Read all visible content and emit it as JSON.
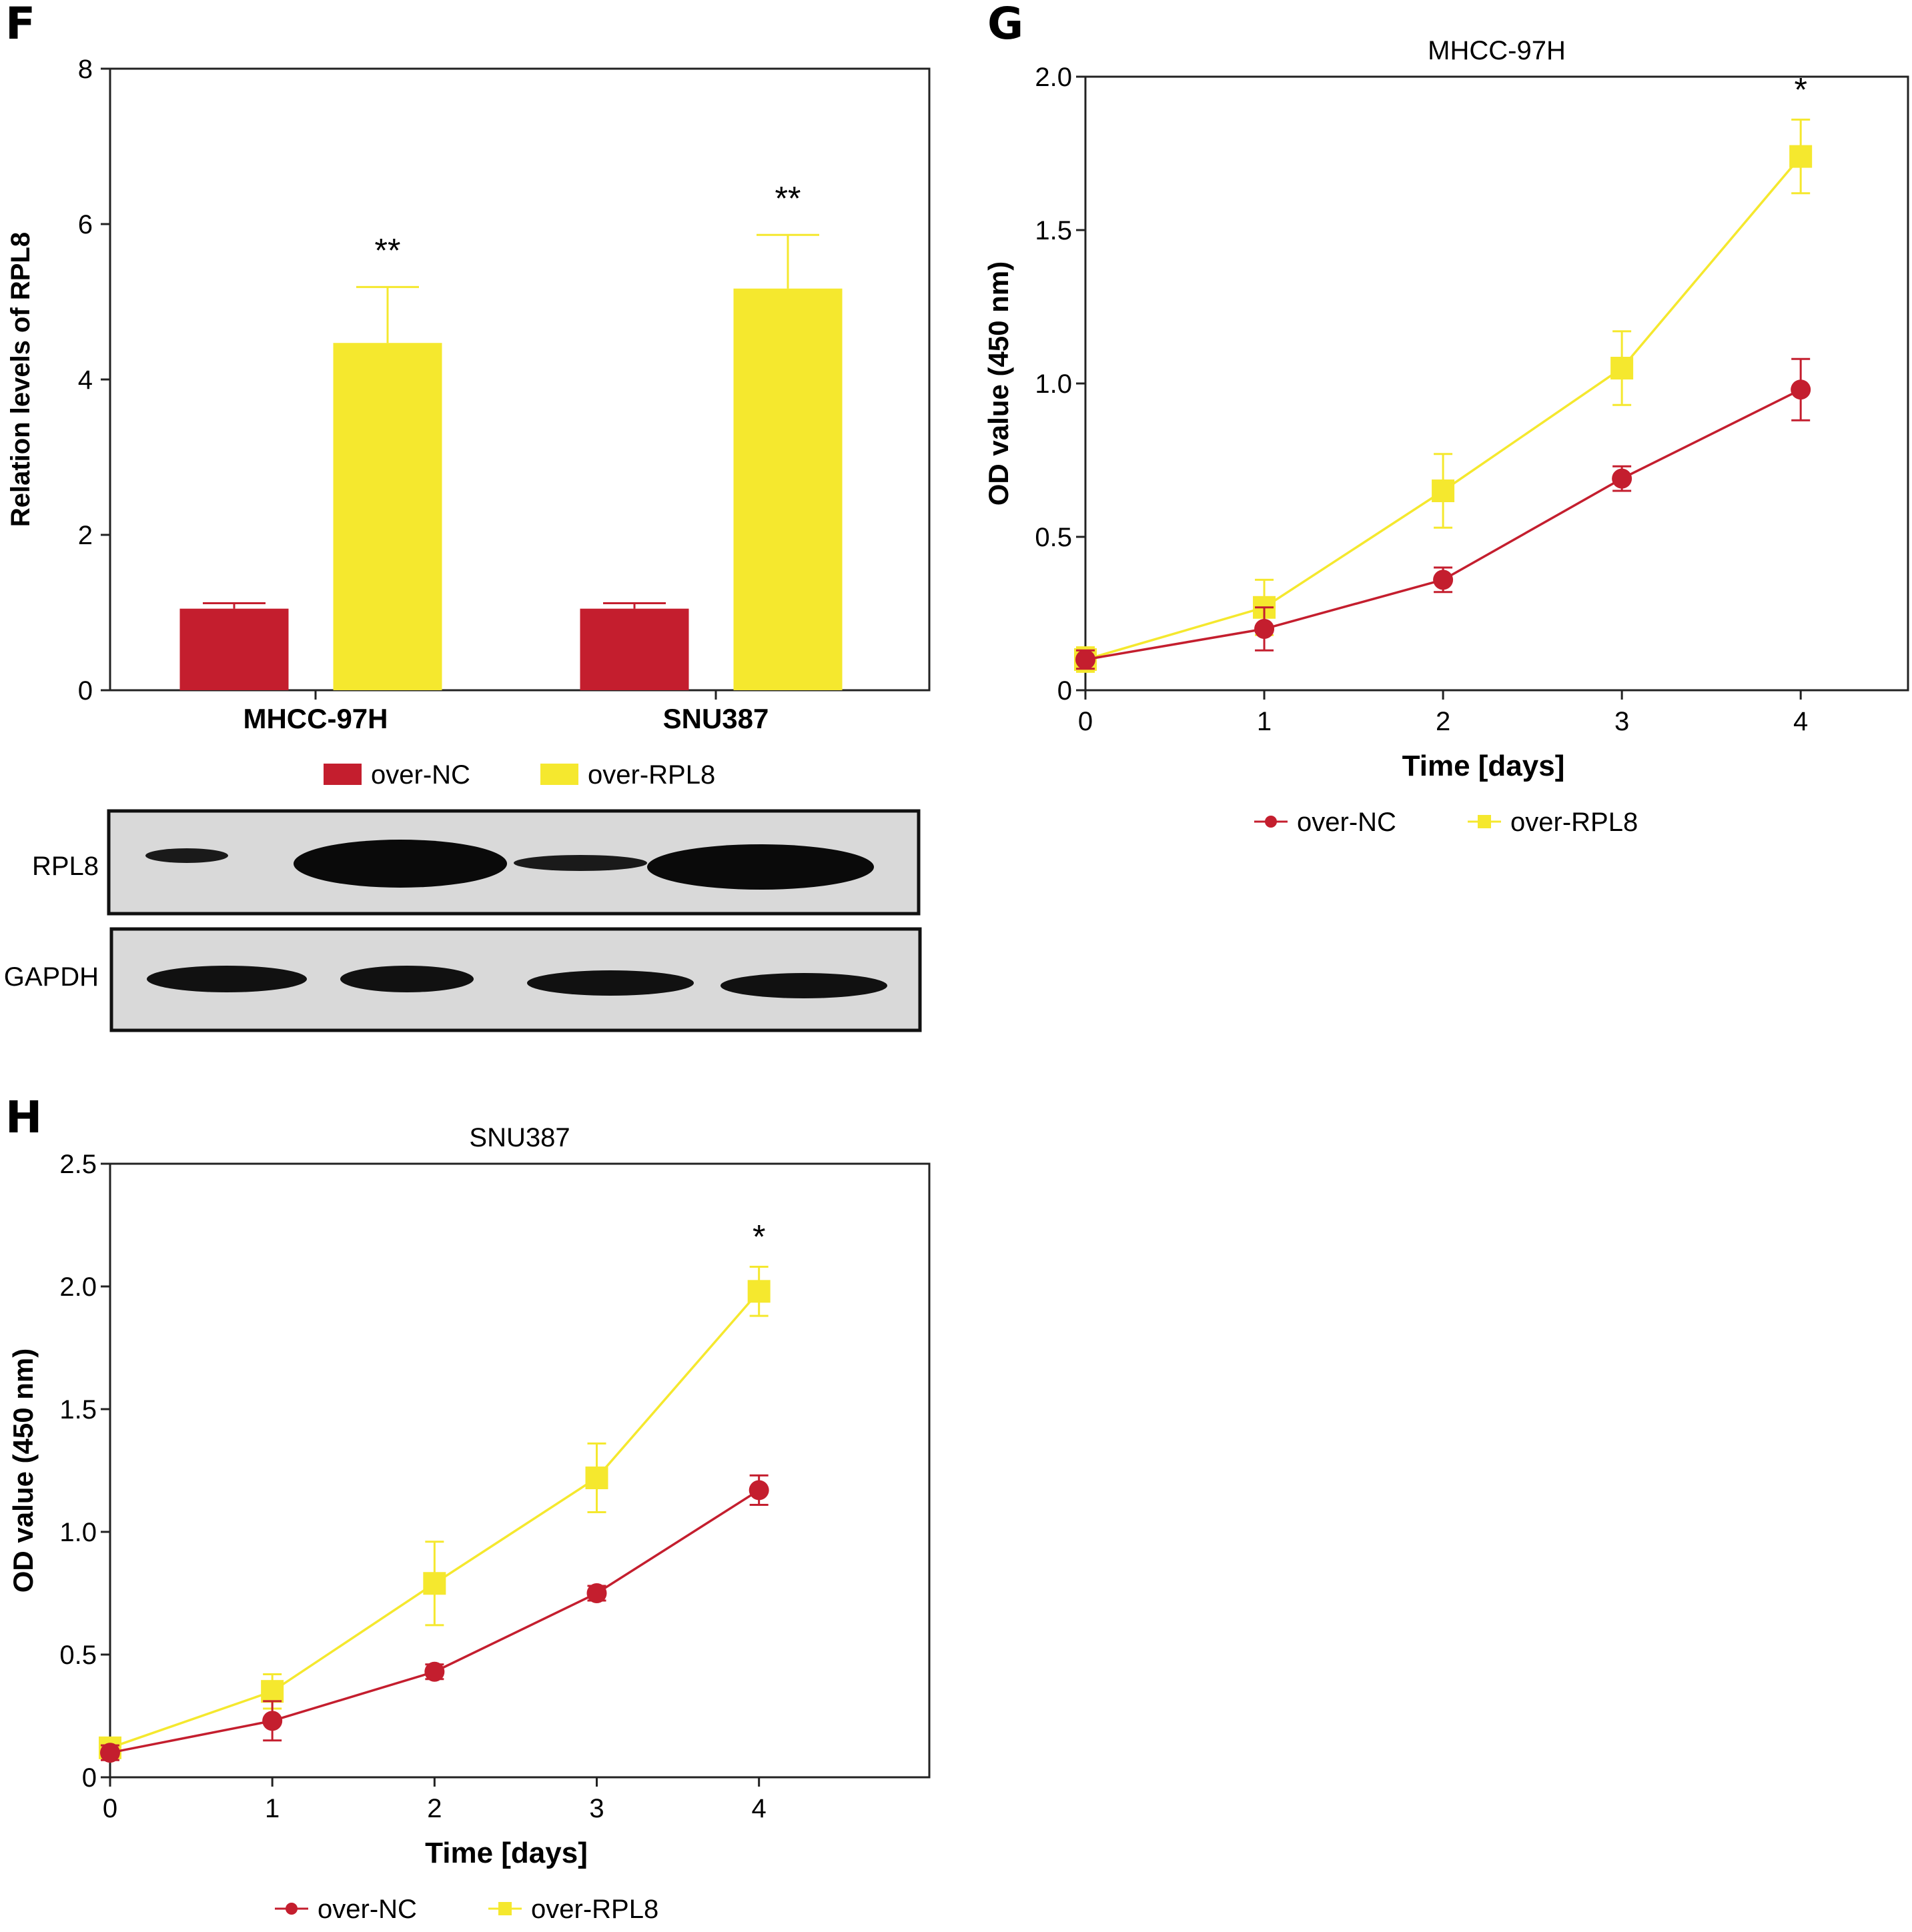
{
  "colors": {
    "red": "#c41e2e",
    "yellow": "#f5e82e",
    "axis": "#222222"
  },
  "legend": {
    "series_nc": "over-NC",
    "series_rpl8": "over-RPL8"
  },
  "panelF": {
    "letter": "F",
    "blot_labels": [
      "RPL8",
      "GAPDH"
    ],
    "chart_data": {
      "type": "bar",
      "title": "",
      "xlabel": "",
      "ylabel": "Relation levels of RPL8",
      "categories": [
        "MHCC-97H",
        "SNU387"
      ],
      "ylim": [
        0,
        8
      ],
      "yticks": [
        0,
        2,
        4,
        6,
        8
      ],
      "series": [
        {
          "name": "over-NC",
          "values": [
            1.05,
            1.05
          ],
          "errors": [
            0.07,
            0.07
          ]
        },
        {
          "name": "over-RPL8",
          "values": [
            4.47,
            5.17
          ],
          "errors": [
            0.72,
            0.69
          ]
        }
      ],
      "annotations": [
        "**",
        "**"
      ]
    }
  },
  "panelG": {
    "letter": "G",
    "chart_data": {
      "type": "line",
      "title": "MHCC-97H",
      "xlabel": "Time [days]",
      "ylabel": "OD value (450 nm)",
      "x": [
        0,
        1,
        2,
        3,
        4
      ],
      "xlim": [
        0,
        4.6
      ],
      "ylim": [
        0,
        2.0
      ],
      "yticks": [
        "0",
        "0.5",
        "1.0",
        "1.5",
        "2.0"
      ],
      "xticks": [
        "0",
        "1",
        "2",
        "3",
        "4"
      ],
      "series": [
        {
          "name": "over-NC",
          "values": [
            0.1,
            0.2,
            0.36,
            0.69,
            0.98
          ],
          "errors": [
            0.03,
            0.07,
            0.04,
            0.04,
            0.1
          ]
        },
        {
          "name": "over-RPL8",
          "values": [
            0.1,
            0.27,
            0.65,
            1.05,
            1.74
          ],
          "errors": [
            0.04,
            0.09,
            0.12,
            0.12,
            0.12
          ]
        }
      ],
      "annotation": "*"
    }
  },
  "panelH": {
    "letter": "H",
    "chart_data": {
      "type": "line",
      "title": "SNU387",
      "xlabel": "Time [days]",
      "ylabel": "OD value (450 nm)",
      "x": [
        0,
        1,
        2,
        3,
        4
      ],
      "xlim": [
        0,
        5.05
      ],
      "ylim": [
        0,
        2.5
      ],
      "yticks": [
        "0",
        "0.5",
        "1.0",
        "1.5",
        "2.0",
        "2.5"
      ],
      "xticks": [
        "0",
        "1",
        "2",
        "3",
        "4"
      ],
      "series": [
        {
          "name": "over-NC",
          "values": [
            0.1,
            0.23,
            0.43,
            0.75,
            1.17
          ],
          "errors": [
            0.03,
            0.08,
            0.03,
            0.03,
            0.06
          ]
        },
        {
          "name": "over-RPL8",
          "values": [
            0.12,
            0.35,
            0.79,
            1.22,
            1.98
          ],
          "errors": [
            0.04,
            0.07,
            0.17,
            0.14,
            0.1
          ]
        }
      ],
      "annotation": "*"
    }
  }
}
